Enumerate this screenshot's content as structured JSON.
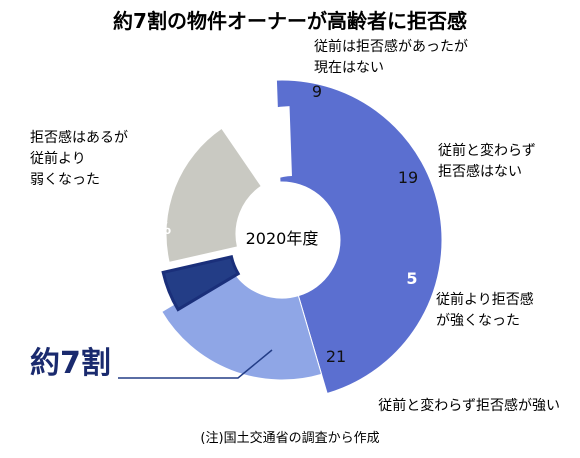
{
  "chart_data": {
    "type": "pie",
    "title": "約7割の物件オーナーが高齢者に拒否感",
    "center_label": "2020年度",
    "slices": [
      {
        "label": "拒否感はあるが 従前より 弱くなった",
        "label_lines": [
          "拒否感はあるが",
          "従前より",
          "弱くなった"
        ],
        "value": 46,
        "value_label": "46%",
        "color": "#5b6fd0"
      },
      {
        "label": "従前と変わらず拒否感が強い",
        "label_lines": [
          "従前と変わらず拒否感が強い"
        ],
        "value": 21,
        "value_label": "21",
        "color": "#8fa6e6"
      },
      {
        "label": "従前より拒否感 が強くなった",
        "label_lines": [
          "従前より拒否感",
          "が強くなった"
        ],
        "value": 5,
        "value_label": "5",
        "color": "#233d86"
      },
      {
        "label": "従前と変わらず 拒否感はない",
        "label_lines": [
          "従前と変わらず",
          "拒否感はない"
        ],
        "value": 19,
        "value_label": "19",
        "color": "#c9c9c2"
      },
      {
        "label": "従前は拒否感があったが 現在はない",
        "label_lines": [
          "従前は拒否感があったが",
          "現在はない"
        ],
        "value": 9,
        "value_label": "9",
        "color": "#ffffff"
      }
    ],
    "callout": "約7割",
    "note": "(注)国土交通省の調査から作成",
    "colors": {
      "highlight_outline": "#1a2f7a",
      "callout_line": "#233d86"
    }
  }
}
